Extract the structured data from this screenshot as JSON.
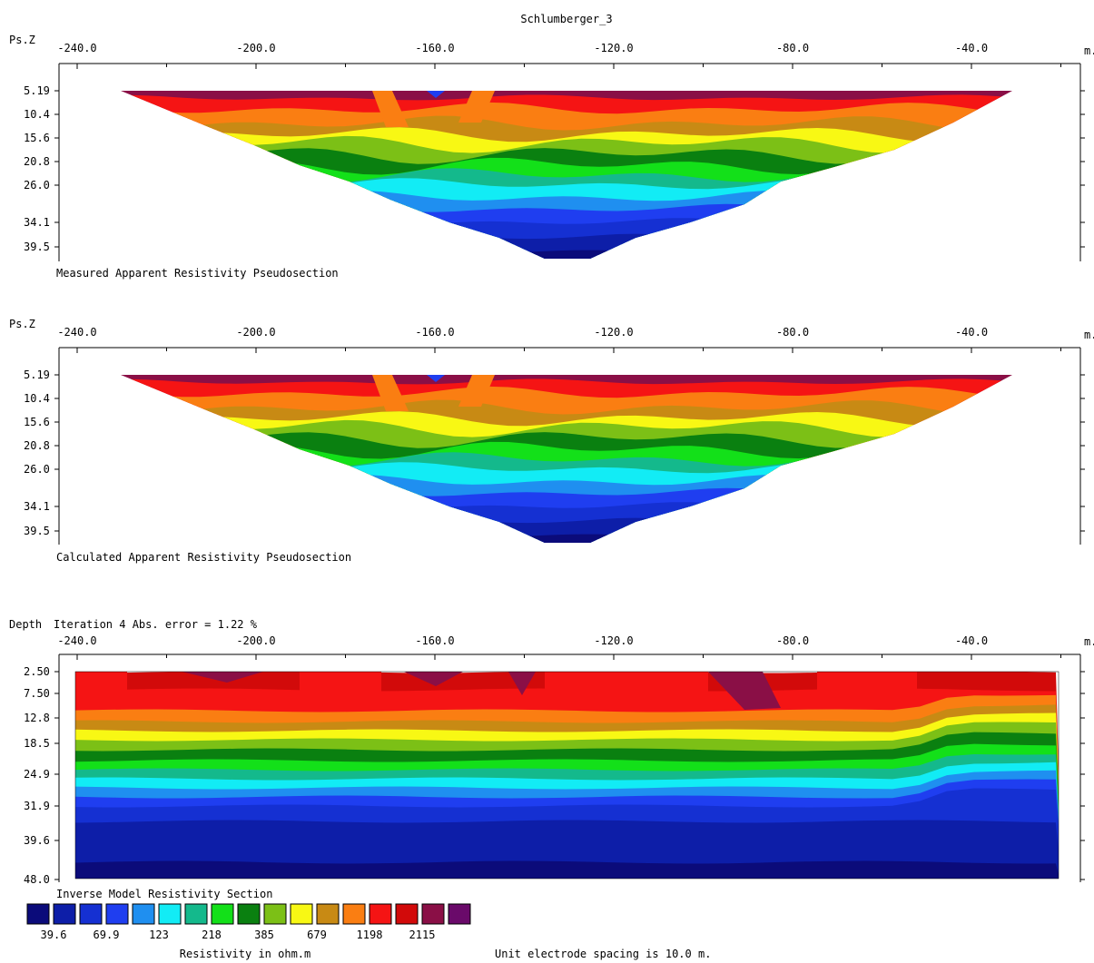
{
  "title": "Schlumberger_3",
  "x_unit": "m.",
  "x_ticks": [
    -240,
    -200,
    -160,
    -120,
    -80,
    -40
  ],
  "x_tick_labels": [
    "-240.0",
    "-200.0",
    "-160.0",
    "-120.0",
    "-80.0",
    "-40.0"
  ],
  "x_range": [
    -240,
    -12
  ],
  "colors": [
    "#0b0b7a",
    "#0d1ea8",
    "#1530d2",
    "#1f3ef0",
    "#1f8ff0",
    "#12ecf5",
    "#14b98c",
    "#13e019",
    "#0a8010",
    "#7cc016",
    "#f8f814",
    "#c88a14",
    "#fa7e12",
    "#f51414",
    "#d20a0a",
    "#8a0f46",
    "#6a0a6a"
  ],
  "panels": {
    "measured": {
      "ylabel": "Ps.Z",
      "caption": "Measured Apparent Resistivity Pseudosection",
      "y_tick_labels": [
        "5.19",
        "10.4",
        "15.6",
        "20.8",
        "26.0",
        "34.1",
        "39.5"
      ]
    },
    "calculated": {
      "ylabel": "Ps.Z",
      "caption": "Calculated Apparent Resistivity Pseudosection",
      "y_tick_labels": [
        "5.19",
        "10.4",
        "15.6",
        "20.8",
        "26.0",
        "34.1",
        "39.5"
      ]
    },
    "inverse": {
      "ylabel": "Depth",
      "iteration_label": "Iteration 4 Abs. error = 1.22 %",
      "caption": "Inverse Model Resistivity Section",
      "y_tick_labels": [
        "2.50",
        "7.50",
        "12.8",
        "18.5",
        "24.9",
        "31.9",
        "39.6",
        "48.0"
      ]
    }
  },
  "legend": {
    "tick_labels": [
      "39.6",
      "69.9",
      "123",
      "218",
      "385",
      "679",
      "1198",
      "2115"
    ],
    "axis_label": "Resistivity in ohm.m"
  },
  "footer_note": "Unit electrode spacing is 10.0 m.",
  "chart_data": [
    {
      "type": "heatmap",
      "title": "Measured Apparent Resistivity Pseudosection",
      "xlabel": "m.",
      "ylabel": "Ps.Z",
      "xlim": [
        -240,
        -12
      ],
      "y_levels": [
        5.19,
        10.4,
        15.6,
        20.8,
        26.0,
        34.1,
        39.5
      ],
      "section_extent_x": [
        [
          -226,
          -26
        ],
        [
          -220,
          -31
        ],
        [
          -213,
          -39
        ],
        [
          -206,
          -46
        ],
        [
          -197,
          -55
        ],
        [
          -186,
          -74
        ],
        [
          -160,
          -90
        ],
        [
          -138,
          -125
        ]
      ]
    },
    {
      "type": "heatmap",
      "title": "Calculated Apparent Resistivity Pseudosection",
      "xlabel": "m.",
      "ylabel": "Ps.Z",
      "xlim": [
        -240,
        -12
      ],
      "y_levels": [
        5.19,
        10.4,
        15.6,
        20.8,
        26.0,
        34.1,
        39.5
      ],
      "section_extent_x": [
        [
          -226,
          -26
        ],
        [
          -220,
          -31
        ],
        [
          -213,
          -39
        ],
        [
          -206,
          -46
        ],
        [
          -197,
          -55
        ],
        [
          -186,
          -74
        ],
        [
          -160,
          -90
        ],
        [
          -138,
          -125
        ]
      ]
    },
    {
      "type": "heatmap",
      "title": "Inverse Model Resistivity Section",
      "xlabel": "m.",
      "ylabel": "Depth",
      "xlim": [
        -240,
        -12
      ],
      "y_levels": [
        2.5,
        7.5,
        12.8,
        18.5,
        24.9,
        31.9,
        39.6,
        48.0
      ],
      "section_extent_x": [
        -236,
        -16
      ],
      "color_scale_ohm_m": [
        39.6,
        69.9,
        123,
        218,
        385,
        679,
        1198,
        2115
      ]
    }
  ]
}
